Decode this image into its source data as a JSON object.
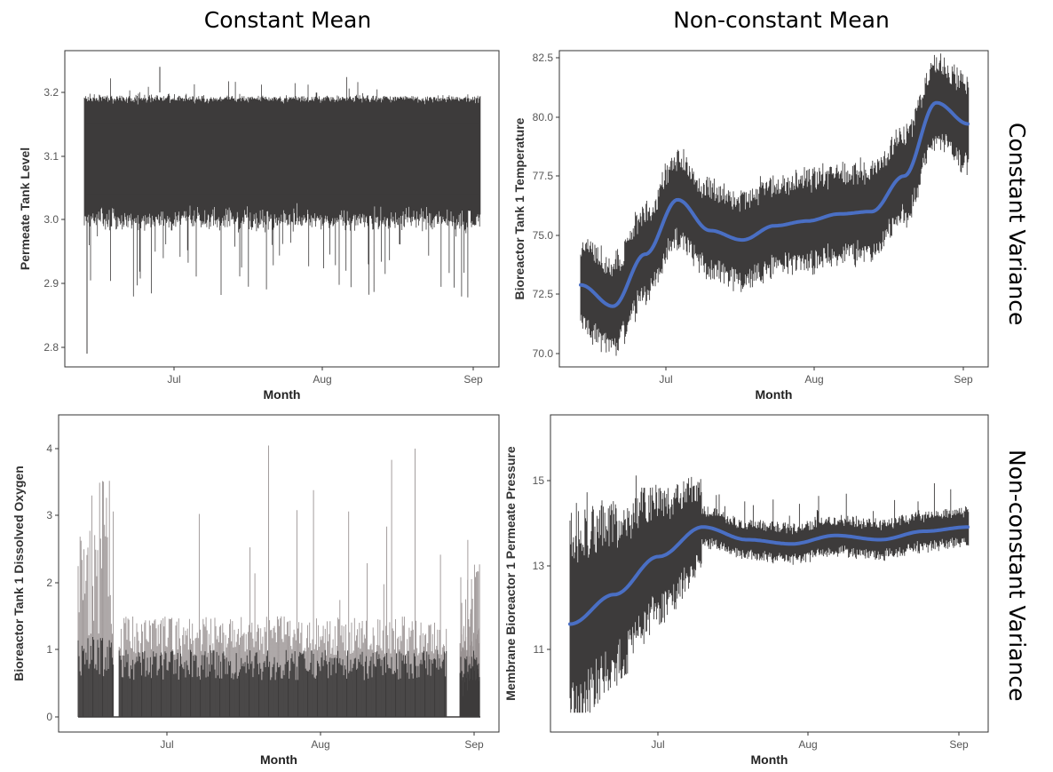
{
  "column_titles": [
    "Constant Mean",
    "Non-constant Mean"
  ],
  "row_titles": [
    "Constant Variance",
    "Non-constant Variance"
  ],
  "chart_data": [
    {
      "type": "line",
      "xlabel": "Month",
      "ylabel": "Permeate Tank Level",
      "xticks": [
        "Jul",
        "Aug",
        "Sep"
      ],
      "yticks": [
        "2.8",
        "2.9",
        "3.0",
        "3.1",
        "3.2"
      ],
      "ylim": [
        2.77,
        3.26
      ],
      "x": [
        "Jun 13",
        "Jul 1",
        "Aug 1",
        "Sep 1"
      ],
      "series": [
        {
          "values_band": {
            "center": 3.1,
            "low": 3.0,
            "high": 3.19,
            "min": 2.79,
            "max": 3.24
          }
        }
      ],
      "grid": false
    },
    {
      "type": "line",
      "xlabel": "Month",
      "ylabel": "Bioreactor Tank 1 Temperature",
      "xticks": [
        "Jul",
        "Aug",
        "Sep"
      ],
      "yticks": [
        "70.0",
        "72.5",
        "75.0",
        "77.5",
        "80.0",
        "82.5"
      ],
      "ylim": [
        69.6,
        82.9
      ],
      "x": [
        "Jun 13",
        "Jun 20",
        "Jun 27",
        "Jul 3",
        "Jul 10",
        "Jul 17",
        "Jul 24",
        "Aug 1",
        "Aug 8",
        "Aug 15",
        "Aug 20",
        "Aug 27",
        "Sep 2"
      ],
      "series": [
        {
          "values": [
            72.9,
            72.0,
            74.2,
            76.5,
            75.2,
            74.8,
            75.4,
            75.6,
            75.9,
            76.0,
            77.5,
            80.6,
            79.7
          ]
        }
      ],
      "grid": false
    },
    {
      "type": "line",
      "xlabel": "Month",
      "ylabel": "Bioreactor Tank 1 Dissolved Oxygen",
      "xticks": [
        "Jul",
        "Aug",
        "Sep"
      ],
      "yticks": [
        "0",
        "1",
        "2",
        "3",
        "4"
      ],
      "ylim": [
        -0.15,
        4.4
      ],
      "series": [
        {
          "values_band": {
            "base": 0,
            "typical_high": 1.0,
            "max": 4.3
          }
        }
      ],
      "grid": false
    },
    {
      "type": "line",
      "xlabel": "Month",
      "ylabel": "Membrane Bioreactor 1 Permeate Pressure",
      "xticks": [
        "Jul",
        "Aug",
        "Sep"
      ],
      "yticks": [
        "11",
        "13",
        "15"
      ],
      "ylim": [
        9.4,
        16.4
      ],
      "x": [
        "Jun 13",
        "Jun 20",
        "Jun 27",
        "Jul 3",
        "Jul 10",
        "Jul 17",
        "Jul 24",
        "Aug 1",
        "Aug 15",
        "Sep 2"
      ],
      "series": [
        {
          "values": [
            11.6,
            12.3,
            13.2,
            13.9,
            13.6,
            13.5,
            13.7,
            13.6,
            13.8,
            13.9
          ]
        }
      ],
      "grid": false
    }
  ],
  "colors": {
    "trace": "#3d3b3b",
    "trace_light": "#9a9393",
    "smooth": "#4a6fc4",
    "frame": "#333333"
  }
}
